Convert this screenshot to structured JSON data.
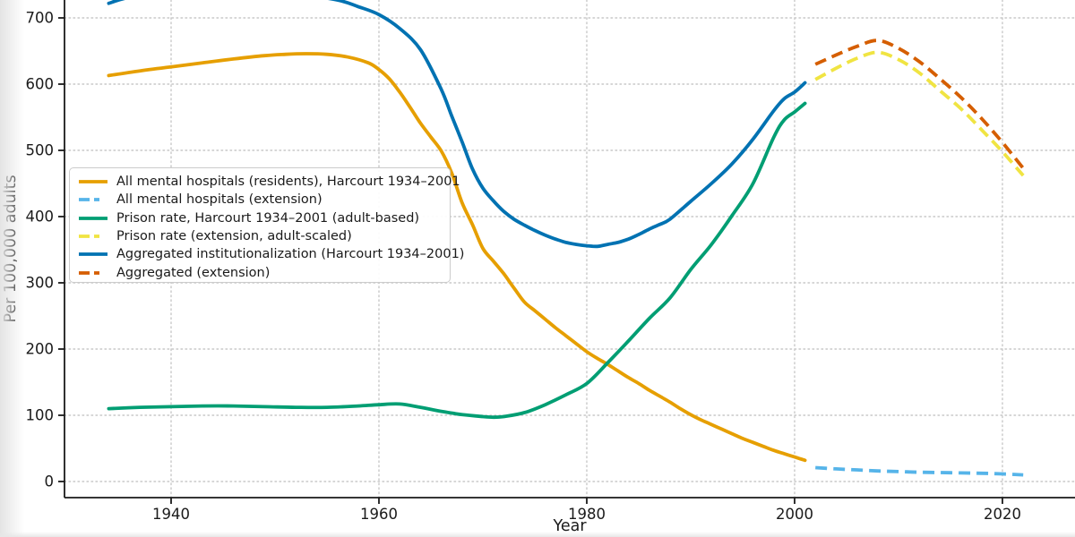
{
  "chart_data": {
    "type": "line",
    "xlabel": "Year",
    "ylabel": "Per 100,000 adults",
    "x_ticks": [
      1940,
      1960,
      1980,
      2000,
      2020
    ],
    "y_ticks": [
      0,
      100,
      200,
      300,
      400,
      500,
      600,
      700
    ],
    "xlim": [
      1929.7,
      2026.8
    ],
    "ylim_visible": [
      -24,
      724
    ],
    "grid": true,
    "grid_style": "dotted",
    "legend_position": "center-left",
    "axis_color": "#1a1a1a",
    "grid_color": "#c9c9c9",
    "series": [
      {
        "name": "All mental hospitals (residents), Harcourt 1934–2001",
        "color": "#E69F00",
        "style": "solid",
        "points": [
          [
            1934,
            613
          ],
          [
            1937,
            620
          ],
          [
            1940,
            626
          ],
          [
            1943,
            632
          ],
          [
            1946,
            638
          ],
          [
            1949,
            643
          ],
          [
            1951,
            645
          ],
          [
            1953,
            646
          ],
          [
            1955,
            645
          ],
          [
            1957,
            641
          ],
          [
            1959,
            632
          ],
          [
            1960,
            622
          ],
          [
            1961,
            608
          ],
          [
            1962,
            588
          ],
          [
            1963,
            565
          ],
          [
            1964,
            541
          ],
          [
            1965,
            520
          ],
          [
            1966,
            499
          ],
          [
            1967,
            466
          ],
          [
            1968,
            421
          ],
          [
            1969,
            388
          ],
          [
            1970,
            352
          ],
          [
            1971,
            333
          ],
          [
            1972,
            314
          ],
          [
            1973,
            292
          ],
          [
            1974,
            271
          ],
          [
            1975,
            258
          ],
          [
            1976,
            245
          ],
          [
            1977,
            232
          ],
          [
            1978,
            220
          ],
          [
            1979,
            208
          ],
          [
            1980,
            196
          ],
          [
            1981,
            186
          ],
          [
            1982,
            177
          ],
          [
            1983,
            167
          ],
          [
            1984,
            157
          ],
          [
            1985,
            148
          ],
          [
            1986,
            138
          ],
          [
            1987,
            129
          ],
          [
            1988,
            120
          ],
          [
            1989,
            110
          ],
          [
            1990,
            101
          ],
          [
            1991,
            93
          ],
          [
            1992,
            86
          ],
          [
            1993,
            79
          ],
          [
            1994,
            72
          ],
          [
            1995,
            65
          ],
          [
            1996,
            59
          ],
          [
            1997,
            53
          ],
          [
            1998,
            47
          ],
          [
            1999,
            42
          ],
          [
            2000,
            37
          ],
          [
            2001,
            32
          ]
        ]
      },
      {
        "name": "All mental hospitals (extension)",
        "color": "#56B4E9",
        "style": "dashed",
        "points": [
          [
            2002,
            21
          ],
          [
            2004,
            19
          ],
          [
            2006,
            17.5
          ],
          [
            2008,
            16
          ],
          [
            2010,
            15
          ],
          [
            2012,
            14
          ],
          [
            2014,
            13.5
          ],
          [
            2016,
            13
          ],
          [
            2018,
            12.5
          ],
          [
            2020,
            11.5
          ],
          [
            2022,
            10
          ]
        ]
      },
      {
        "name": "Prison rate, Harcourt 1934–2001 (adult-based)",
        "color": "#009E73",
        "style": "solid",
        "points": [
          [
            1934,
            110
          ],
          [
            1937,
            112
          ],
          [
            1940,
            113
          ],
          [
            1943,
            114
          ],
          [
            1946,
            114
          ],
          [
            1949,
            113
          ],
          [
            1952,
            112
          ],
          [
            1955,
            112
          ],
          [
            1958,
            114
          ],
          [
            1960,
            116
          ],
          [
            1962,
            117
          ],
          [
            1964,
            112
          ],
          [
            1966,
            106
          ],
          [
            1968,
            101
          ],
          [
            1970,
            98
          ],
          [
            1971,
            97
          ],
          [
            1972,
            98
          ],
          [
            1974,
            104
          ],
          [
            1976,
            116
          ],
          [
            1978,
            131
          ],
          [
            1980,
            148
          ],
          [
            1982,
            179
          ],
          [
            1984,
            212
          ],
          [
            1986,
            246
          ],
          [
            1988,
            277
          ],
          [
            1990,
            320
          ],
          [
            1992,
            358
          ],
          [
            1994,
            402
          ],
          [
            1996,
            450
          ],
          [
            1998,
            520
          ],
          [
            1999,
            546
          ],
          [
            2000,
            558
          ],
          [
            2001,
            571
          ]
        ]
      },
      {
        "name": "Prison rate (extension, adult-scaled)",
        "color": "#F0E442",
        "style": "dashed",
        "points": [
          [
            2002,
            607
          ],
          [
            2004,
            624
          ],
          [
            2006,
            639
          ],
          [
            2008,
            648
          ],
          [
            2010,
            637
          ],
          [
            2012,
            617
          ],
          [
            2014,
            590
          ],
          [
            2016,
            563
          ],
          [
            2018,
            531
          ],
          [
            2020,
            498
          ],
          [
            2022,
            462
          ]
        ]
      },
      {
        "name": "Aggregated institutionalization (Harcourt 1934–2001)",
        "color": "#0072B2",
        "style": "solid",
        "points": [
          [
            1934,
            722
          ],
          [
            1936,
            731
          ],
          [
            1940,
            738
          ],
          [
            1944,
            741
          ],
          [
            1948,
            740
          ],
          [
            1952,
            736
          ],
          [
            1956,
            727
          ],
          [
            1958,
            717
          ],
          [
            1960,
            705
          ],
          [
            1962,
            684
          ],
          [
            1964,
            652
          ],
          [
            1966,
            592
          ],
          [
            1967,
            552
          ],
          [
            1968,
            513
          ],
          [
            1969,
            472
          ],
          [
            1970,
            443
          ],
          [
            1971,
            424
          ],
          [
            1972,
            408
          ],
          [
            1973,
            396
          ],
          [
            1974,
            387
          ],
          [
            1975,
            379
          ],
          [
            1976,
            372
          ],
          [
            1977,
            366
          ],
          [
            1978,
            361
          ],
          [
            1979,
            358
          ],
          [
            1980,
            356
          ],
          [
            1981,
            355
          ],
          [
            1982,
            358
          ],
          [
            1983,
            361
          ],
          [
            1984,
            366
          ],
          [
            1985,
            373
          ],
          [
            1986,
            381
          ],
          [
            1987,
            388
          ],
          [
            1988,
            396
          ],
          [
            1990,
            423
          ],
          [
            1992,
            450
          ],
          [
            1994,
            480
          ],
          [
            1996,
            517
          ],
          [
            1998,
            560
          ],
          [
            1999,
            578
          ],
          [
            2000,
            588
          ],
          [
            2001,
            602
          ]
        ]
      },
      {
        "name": "Aggregated (extension)",
        "color": "#D55E00",
        "style": "dashed",
        "points": [
          [
            2002,
            630
          ],
          [
            2004,
            644
          ],
          [
            2006,
            657
          ],
          [
            2008,
            666
          ],
          [
            2010,
            654
          ],
          [
            2012,
            634
          ],
          [
            2014,
            608
          ],
          [
            2016,
            580
          ],
          [
            2018,
            548
          ],
          [
            2020,
            512
          ],
          [
            2022,
            473
          ]
        ]
      }
    ]
  }
}
